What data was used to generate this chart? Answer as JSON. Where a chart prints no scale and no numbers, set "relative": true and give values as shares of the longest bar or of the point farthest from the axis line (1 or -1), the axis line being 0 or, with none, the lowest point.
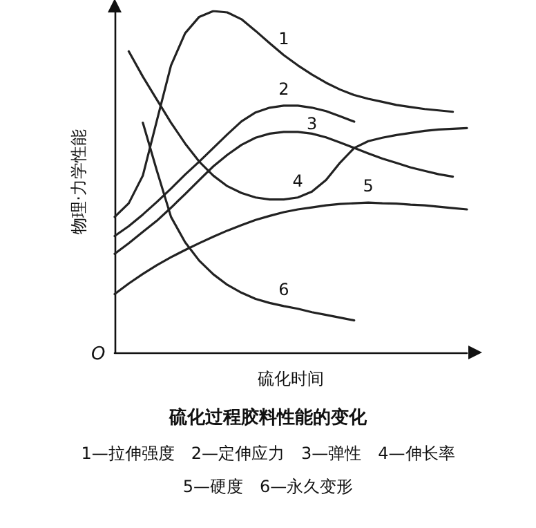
{
  "chart_data": {
    "type": "line",
    "title": "硫化过程胶料性能的变化",
    "xlabel": "硫化时间",
    "ylabel": "物理·力学性能",
    "relative": true,
    "grid": false,
    "legend": false,
    "marker": "none",
    "line_style": "solid",
    "categories": [
      null,
      null,
      null,
      null,
      null,
      null,
      null,
      null,
      null,
      null,
      null,
      null,
      null,
      null,
      null,
      null,
      null,
      null,
      null,
      null,
      null,
      null,
      null,
      null,
      null,
      null
    ],
    "annotations": [
      "O",
      "1—拉伸强度　2—定伸应力　3—弹性　4—伸长率",
      "5—硬度　6—永久变形"
    ],
    "series": [
      {
        "name": "1",
        "color": "#222222",
        "values": [
          0.397,
          0.437,
          0.518,
          0.68,
          0.841,
          0.935,
          0.983,
          1,
          0.996,
          0.976,
          0.942,
          0.906,
          0.871,
          0.841,
          0.814,
          0.79,
          0.77,
          0.754,
          0.743,
          0.734,
          0.725,
          0.719,
          0.713,
          0.709,
          0.705,
          null
        ]
      },
      {
        "name": "2",
        "color": "#222222",
        "values": [
          0.341,
          0.37,
          0.404,
          0.441,
          0.48,
          0.521,
          0.559,
          0.599,
          0.639,
          0.677,
          0.703,
          0.717,
          0.723,
          0.723,
          0.717,
          0.707,
          0.692,
          0.676,
          null,
          null,
          null,
          null,
          null,
          null,
          null,
          null
        ]
      },
      {
        "name": "3",
        "color": "#222222",
        "values": [
          0.289,
          0.32,
          0.353,
          0.386,
          0.424,
          0.464,
          0.505,
          0.545,
          0.579,
          0.608,
          0.629,
          0.641,
          0.646,
          0.646,
          0.641,
          0.63,
          0.615,
          0.599,
          0.583,
          0.568,
          0.555,
          0.542,
          0.532,
          0.522,
          0.515,
          null
        ]
      },
      {
        "name": "4",
        "color": "#222222",
        "values": [
          null,
          0.882,
          0.808,
          0.74,
          0.673,
          0.612,
          0.559,
          0.518,
          0.487,
          0.467,
          0.454,
          0.448,
          0.448,
          0.454,
          0.471,
          0.505,
          0.556,
          0.599,
          0.619,
          0.629,
          0.637,
          0.643,
          0.649,
          0.653,
          0.655,
          0.657
        ]
      },
      {
        "name": "5",
        "color": "#222222",
        "values": [
          0.171,
          0.202,
          0.23,
          0.256,
          0.279,
          0.3,
          0.32,
          0.339,
          0.357,
          0.373,
          0.388,
          0.4,
          0.411,
          0.419,
          0.425,
          0.431,
          0.435,
          0.437,
          0.439,
          0.437,
          0.436,
          0.433,
          0.431,
          0.427,
          0.423,
          0.419
        ]
      },
      {
        "name": "6",
        "color": "#222222",
        "values": [
          null,
          null,
          0.673,
          0.532,
          0.397,
          0.323,
          0.269,
          0.229,
          0.198,
          0.175,
          0.157,
          0.145,
          0.136,
          0.128,
          0.118,
          0.11,
          0.102,
          0.094,
          null,
          null,
          null,
          null,
          null,
          null,
          null,
          null
        ]
      }
    ]
  }
}
